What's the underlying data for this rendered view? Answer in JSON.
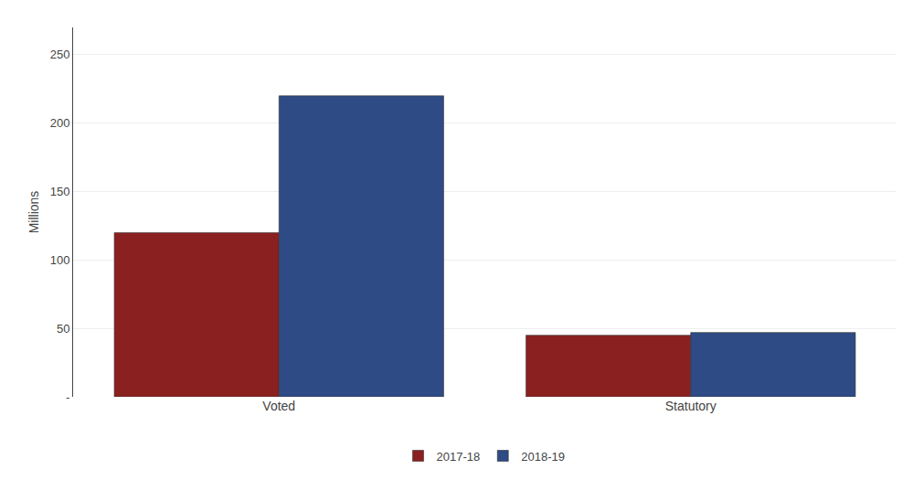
{
  "chart_data": {
    "type": "bar",
    "categories": [
      "Voted",
      "Statutory"
    ],
    "series": [
      {
        "name": "2017-18",
        "color": "#8B2020",
        "values": [
          120,
          45
        ]
      },
      {
        "name": "2018-19",
        "color": "#2E4B85",
        "values": [
          220,
          47
        ]
      }
    ],
    "ylabel": "Millions",
    "ylim": [
      0,
      270
    ],
    "yticks": [
      {
        "value": 0,
        "label": "-"
      },
      50,
      100,
      150,
      200,
      250
    ],
    "grid": true,
    "legend": "bottom"
  }
}
